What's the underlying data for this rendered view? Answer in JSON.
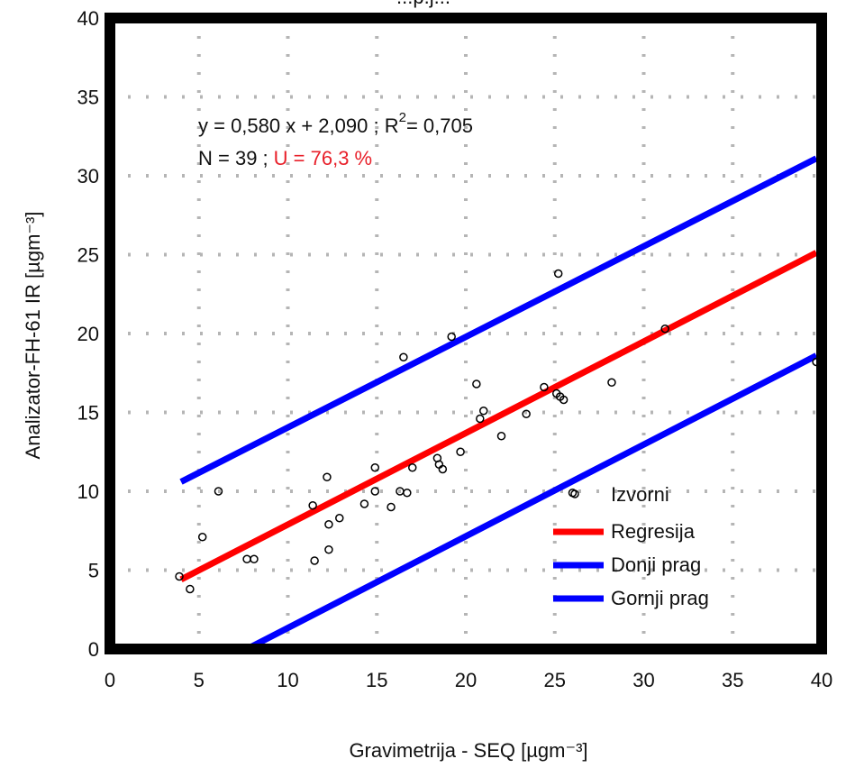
{
  "chart_data": {
    "type": "scatter",
    "title": "...p.j...",
    "xlabel": "Gravimetrija - SEQ [µgm⁻³]",
    "ylabel": "Analizator-FH-61 IR [µgm⁻³]",
    "xlim": [
      0,
      40
    ],
    "ylim": [
      0,
      40
    ],
    "xticks": [
      0,
      5,
      10,
      15,
      20,
      25,
      30,
      35,
      40
    ],
    "yticks": [
      0,
      5,
      10,
      15,
      20,
      25,
      30,
      35,
      40
    ],
    "grid": true,
    "legend_position": "bottom-right",
    "annotations": {
      "equation": "y = 0,580 x + 2,090 ; R",
      "r_exponent": "2",
      "r_value": "= 0,705",
      "n_text": "N = 39 ;",
      "u_text": "U = 76,3 %"
    },
    "series": [
      {
        "name": "Izvorni",
        "kind": "points",
        "color": "#000000",
        "points": [
          [
            3.9,
            4.6
          ],
          [
            4.5,
            3.8
          ],
          [
            5.2,
            7.1
          ],
          [
            6.1,
            10.0
          ],
          [
            7.7,
            5.7
          ],
          [
            8.1,
            5.7
          ],
          [
            11.4,
            9.1
          ],
          [
            11.5,
            5.6
          ],
          [
            12.2,
            10.9
          ],
          [
            12.3,
            7.9
          ],
          [
            12.3,
            6.3
          ],
          [
            12.9,
            8.3
          ],
          [
            14.3,
            9.2
          ],
          [
            14.9,
            11.5
          ],
          [
            14.9,
            10.0
          ],
          [
            15.8,
            9.0
          ],
          [
            16.3,
            10.0
          ],
          [
            16.5,
            18.5
          ],
          [
            16.7,
            9.9
          ],
          [
            17.0,
            11.5
          ],
          [
            18.4,
            12.1
          ],
          [
            18.5,
            11.7
          ],
          [
            18.7,
            11.4
          ],
          [
            19.2,
            19.8
          ],
          [
            19.7,
            12.5
          ],
          [
            20.6,
            16.8
          ],
          [
            20.8,
            14.6
          ],
          [
            21.0,
            15.1
          ],
          [
            22.0,
            13.5
          ],
          [
            23.4,
            14.9
          ],
          [
            24.4,
            16.6
          ],
          [
            25.1,
            16.2
          ],
          [
            25.2,
            23.8
          ],
          [
            25.3,
            16.0
          ],
          [
            25.5,
            15.8
          ],
          [
            26.0,
            9.9
          ],
          [
            28.2,
            16.9
          ],
          [
            31.2,
            20.3
          ],
          [
            39.7,
            18.2
          ]
        ]
      },
      {
        "name": "Regresija",
        "kind": "line",
        "color": "#ff0000",
        "x": [
          4,
          39.7
        ],
        "y": [
          4.41,
          25.12
        ]
      },
      {
        "name": "Donji prag",
        "kind": "line",
        "color": "#0000ff",
        "x": [
          7.7,
          39.7
        ],
        "y": [
          0,
          18.6
        ]
      },
      {
        "name": "Gornji prag",
        "kind": "line",
        "color": "#0000ff",
        "x": [
          4,
          39.7
        ],
        "y": [
          10.6,
          31.1
        ]
      }
    ]
  },
  "colors": {
    "frame": "#000000",
    "grid": "#b5b5b5",
    "points": "#000000",
    "regression": "#ff0000",
    "thresholds": "#0000ff",
    "highlight": "#e8202a"
  }
}
